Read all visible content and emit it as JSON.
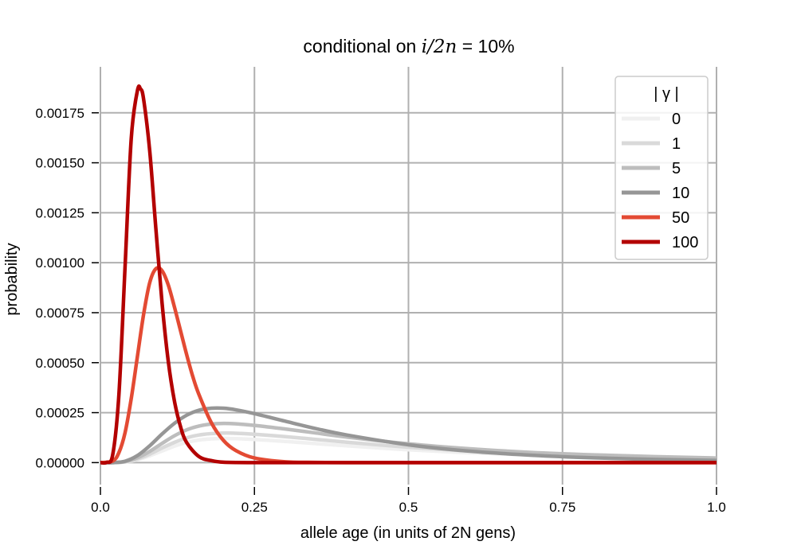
{
  "chart_data": {
    "type": "line",
    "title": "conditional on i/2n = 10%",
    "title_parts": {
      "prefix": "conditional on ",
      "math": "i/2n",
      "eq": " = ",
      "pct": "10%"
    },
    "xlabel": "allele age (in units of 2N gens)",
    "ylabel": "probability",
    "xlim": [
      0,
      1
    ],
    "ylim": [
      -0.00011,
      0.00198
    ],
    "xticks": [
      0,
      0.25,
      0.5,
      0.75,
      1.0
    ],
    "xtick_labels": [
      "0.0",
      "0.25",
      "0.5",
      "0.75",
      "1.0"
    ],
    "yticks": [
      0,
      0.00025,
      0.0005,
      0.00075,
      0.001,
      0.00125,
      0.0015,
      0.00175
    ],
    "ytick_labels": [
      "0.00000",
      "0.00025",
      "0.00050",
      "0.00075",
      "0.00100",
      "0.00125",
      "0.00150",
      "0.00175"
    ],
    "grid": true,
    "legend": {
      "title": "| γ |",
      "placement": "top-right"
    },
    "series": [
      {
        "name": "0",
        "color": "#f0f0f0",
        "x": [
          0,
          0.02,
          0.04,
          0.06,
          0.08,
          0.1,
          0.12,
          0.14,
          0.16,
          0.18,
          0.2,
          0.22,
          0.25,
          0.3,
          0.35,
          0.4,
          0.5,
          0.6,
          0.7,
          0.8,
          0.9,
          1.0
        ],
        "y": [
          0,
          0,
          3e-06,
          1.4e-05,
          3.4e-05,
          5.8e-05,
          8.2e-05,
          0.000101,
          0.000113,
          0.000119,
          0.000121,
          0.00012,
          0.000116,
          0.000106,
          9.5e-05,
          8.4e-05,
          6.4e-05,
          4.9e-05,
          3.8e-05,
          3e-05,
          2.4e-05,
          2e-05
        ]
      },
      {
        "name": "1",
        "color": "#d9d9d9",
        "x": [
          0,
          0.02,
          0.04,
          0.06,
          0.08,
          0.1,
          0.12,
          0.14,
          0.16,
          0.18,
          0.2,
          0.22,
          0.25,
          0.3,
          0.35,
          0.4,
          0.5,
          0.6,
          0.7,
          0.8,
          0.9,
          1.0
        ],
        "y": [
          0,
          0,
          4e-06,
          1.8e-05,
          4.2e-05,
          7.3e-05,
          0.000101,
          0.000124,
          0.000138,
          0.000145,
          0.000148,
          0.000147,
          0.000142,
          0.00013,
          0.000116,
          0.000102,
          7.7e-05,
          5.8e-05,
          4.4e-05,
          3.4e-05,
          2.7e-05,
          2.2e-05
        ]
      },
      {
        "name": "5",
        "color": "#bdbdbd",
        "x": [
          0,
          0.02,
          0.04,
          0.06,
          0.08,
          0.1,
          0.12,
          0.14,
          0.16,
          0.18,
          0.2,
          0.22,
          0.25,
          0.3,
          0.35,
          0.4,
          0.5,
          0.6,
          0.7,
          0.8,
          0.9,
          1.0
        ],
        "y": [
          0,
          0,
          5e-06,
          2.4e-05,
          5.6e-05,
          9.6e-05,
          0.000134,
          0.000164,
          0.000183,
          0.000193,
          0.000196,
          0.000194,
          0.000186,
          0.000168,
          0.000148,
          0.000128,
          9.4e-05,
          6.9e-05,
          5.1e-05,
          3.9e-05,
          3e-05,
          2.3e-05
        ]
      },
      {
        "name": "10",
        "color": "#969696",
        "x": [
          0,
          0.02,
          0.04,
          0.06,
          0.08,
          0.1,
          0.12,
          0.14,
          0.16,
          0.18,
          0.2,
          0.22,
          0.25,
          0.3,
          0.35,
          0.4,
          0.5,
          0.6,
          0.7,
          0.8,
          0.9,
          1.0
        ],
        "y": [
          0,
          0,
          7e-06,
          3.5e-05,
          8.4e-05,
          0.000143,
          0.000196,
          0.000237,
          0.000262,
          0.000272,
          0.000272,
          0.000264,
          0.000245,
          0.000207,
          0.00017,
          0.000138,
          8.9e-05,
          5.7e-05,
          3.7e-05,
          2.4e-05,
          1.6e-05,
          1.1e-05
        ]
      },
      {
        "name": "50",
        "color": "#e34a33",
        "x": [
          0,
          0.02,
          0.03,
          0.04,
          0.05,
          0.06,
          0.07,
          0.08,
          0.09,
          0.1,
          0.11,
          0.12,
          0.13,
          0.14,
          0.15,
          0.16,
          0.18,
          0.2,
          0.22,
          0.25,
          0.3,
          0.35,
          0.4,
          0.5,
          0.6,
          1.0
        ],
        "y": [
          0,
          8e-06,
          5e-05,
          0.00015,
          0.00032,
          0.00053,
          0.00074,
          0.0009,
          0.00097,
          0.00096,
          0.00089,
          0.00078,
          0.00066,
          0.00054,
          0.00043,
          0.00034,
          0.0002,
          0.00011,
          6e-05,
          2.3e-05,
          4e-06,
          1e-06,
          0,
          0,
          0,
          0
        ]
      },
      {
        "name": "100",
        "color": "#b30000",
        "x": [
          0,
          0.01,
          0.02,
          0.03,
          0.04,
          0.05,
          0.06,
          0.065,
          0.07,
          0.08,
          0.09,
          0.1,
          0.11,
          0.12,
          0.13,
          0.14,
          0.16,
          0.18,
          0.2,
          0.25,
          0.3,
          1.0
        ],
        "y": [
          0,
          1e-06,
          4e-05,
          0.00034,
          0.00098,
          0.00162,
          0.00186,
          0.00187,
          0.00182,
          0.00156,
          0.00117,
          0.0008,
          0.00051,
          0.00031,
          0.00018,
          0.0001,
          3e-05,
          1e-05,
          2e-06,
          0,
          0,
          0
        ]
      }
    ]
  }
}
